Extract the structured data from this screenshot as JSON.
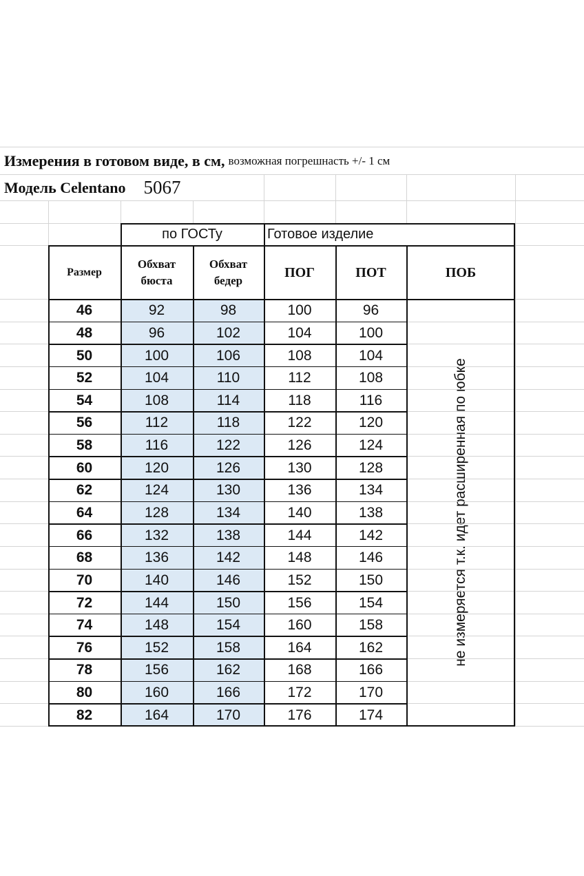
{
  "title": {
    "bold": "Измерения в готовом виде, в  см,",
    "normal": "возможная погрешнасть +/- 1 см"
  },
  "model": {
    "label": "Модель Celentano",
    "number": "5067"
  },
  "groups": {
    "gost": "по ГОСТу",
    "finished": "Готовое изделие"
  },
  "headers": [
    "Размер",
    "Обхват бюста",
    "Обхват бедер",
    "ПОГ",
    "ПОТ",
    "ПОБ"
  ],
  "rows": [
    [
      "46",
      "92",
      "98",
      "100",
      "96"
    ],
    [
      "48",
      "96",
      "102",
      "104",
      "100"
    ],
    [
      "50",
      "100",
      "106",
      "108",
      "104"
    ],
    [
      "52",
      "104",
      "110",
      "112",
      "108"
    ],
    [
      "54",
      "108",
      "114",
      "118",
      "116"
    ],
    [
      "56",
      "112",
      "118",
      "122",
      "120"
    ],
    [
      "58",
      "116",
      "122",
      "126",
      "124"
    ],
    [
      "60",
      "120",
      "126",
      "130",
      "128"
    ],
    [
      "62",
      "124",
      "130",
      "136",
      "134"
    ],
    [
      "64",
      "128",
      "134",
      "140",
      "138"
    ],
    [
      "66",
      "132",
      "138",
      "144",
      "142"
    ],
    [
      "68",
      "136",
      "142",
      "148",
      "146"
    ],
    [
      "70",
      "140",
      "146",
      "152",
      "150"
    ],
    [
      "72",
      "144",
      "150",
      "156",
      "154"
    ],
    [
      "74",
      "148",
      "154",
      "160",
      "158"
    ],
    [
      "76",
      "152",
      "158",
      "164",
      "162"
    ],
    [
      "78",
      "156",
      "162",
      "168",
      "166"
    ],
    [
      "80",
      "160",
      "166",
      "172",
      "170"
    ],
    [
      "82",
      "164",
      "170",
      "176",
      "174"
    ]
  ],
  "pob_note": "не измеряется т.к. идет расширенная по юбке",
  "colors": {
    "gost_fill": "#dce9f5",
    "border": "#111111",
    "grid": "#d4d4d4"
  }
}
